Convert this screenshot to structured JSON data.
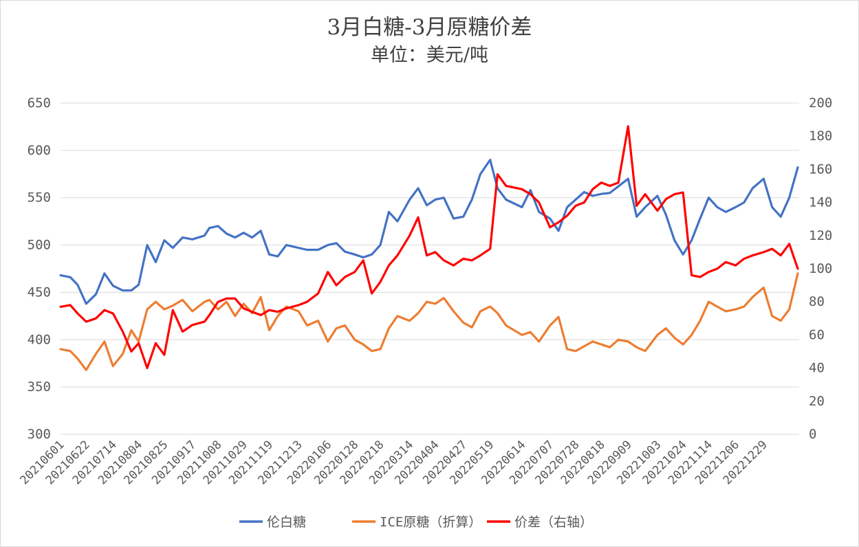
{
  "chart_data": {
    "type": "line",
    "title": "3月白糖-3月原糖价差",
    "subtitle": "单位：美元/吨",
    "left_axis": {
      "range": [
        300,
        650
      ],
      "ticks": [
        "300",
        "350",
        "400",
        "450",
        "500",
        "550",
        "600",
        "650"
      ]
    },
    "right_axis": {
      "range": [
        0,
        200
      ],
      "ticks": [
        "0",
        "20",
        "40",
        "60",
        "80",
        "100",
        "120",
        "140",
        "160",
        "180",
        "200"
      ]
    },
    "grid": true,
    "legend_position": "bottom",
    "x_tick_labels": [
      "20210601",
      "20210622",
      "20210714",
      "20210804",
      "20210825",
      "20210917",
      "20211008",
      "20211029",
      "20211119",
      "20211213",
      "20220106",
      "20220128",
      "20220218",
      "20220314",
      "20220404",
      "20220427",
      "20220519",
      "20220614",
      "20220707",
      "20220728",
      "20220818",
      "20220909",
      "20221003",
      "20221024",
      "20221114",
      "20221206",
      "20221229"
    ],
    "series": [
      {
        "name": "伦白糖",
        "axis": "left",
        "color": "#4472c4",
        "x": [
          "20210601",
          "20210609",
          "20210615",
          "20210622",
          "20210630",
          "20210707",
          "20210714",
          "20210722",
          "20210729",
          "20210804",
          "20210811",
          "20210818",
          "20210825",
          "20210901",
          "20210909",
          "20210917",
          "20210927",
          "20211001",
          "20211008",
          "20211015",
          "20211022",
          "20211029",
          "20211105",
          "20211112",
          "20211119",
          "20211126",
          "20211203",
          "20211213",
          "20211220",
          "20211229",
          "20220106",
          "20220113",
          "20220120",
          "20220128",
          "20220204",
          "20220211",
          "20220218",
          "20220225",
          "20220304",
          "20220314",
          "20220321",
          "20220328",
          "20220404",
          "20220411",
          "20220419",
          "20220427",
          "20220504",
          "20220511",
          "20220519",
          "20220525",
          "20220601",
          "20220614",
          "20220621",
          "20220628",
          "20220707",
          "20220714",
          "20220721",
          "20220728",
          "20220804",
          "20220811",
          "20220818",
          "20220825",
          "20220901",
          "20220909",
          "20220916",
          "20220923",
          "20221003",
          "20221010",
          "20221017",
          "20221024",
          "20221031",
          "20221107",
          "20221114",
          "20221121",
          "20221128",
          "20221206",
          "20221213",
          "20221220",
          "20221229",
          "20230105",
          "20230112",
          "20230119",
          "20230126"
        ],
        "values": [
          468,
          466,
          458,
          438,
          448,
          470,
          457,
          452,
          452,
          458,
          500,
          482,
          505,
          497,
          508,
          506,
          510,
          518,
          520,
          512,
          508,
          513,
          508,
          515,
          490,
          488,
          500,
          497,
          495,
          495,
          500,
          502,
          493,
          490,
          487,
          490,
          500,
          535,
          525,
          548,
          560,
          542,
          548,
          550,
          528,
          530,
          548,
          575,
          590,
          560,
          548,
          540,
          558,
          535,
          528,
          515,
          540,
          548,
          556,
          552,
          554,
          555,
          562,
          570,
          530,
          540,
          552,
          532,
          505,
          490,
          505,
          528,
          550,
          540,
          535,
          540,
          545,
          560,
          570,
          540,
          530,
          550,
          582
        ]
      },
      {
        "name": "ICE原糖（折算）",
        "axis": "left",
        "color": "#ed7d31",
        "x": [
          "20210601",
          "20210609",
          "20210615",
          "20210622",
          "20210630",
          "20210707",
          "20210714",
          "20210722",
          "20210729",
          "20210804",
          "20210811",
          "20210818",
          "20210825",
          "20210901",
          "20210909",
          "20210917",
          "20210927",
          "20211001",
          "20211008",
          "20211015",
          "20211022",
          "20211029",
          "20211105",
          "20211112",
          "20211119",
          "20211126",
          "20211203",
          "20211213",
          "20211220",
          "20211229",
          "20220106",
          "20220113",
          "20220120",
          "20220128",
          "20220204",
          "20220211",
          "20220218",
          "20220225",
          "20220304",
          "20220314",
          "20220321",
          "20220328",
          "20220404",
          "20220411",
          "20220419",
          "20220427",
          "20220504",
          "20220511",
          "20220519",
          "20220525",
          "20220601",
          "20220614",
          "20220621",
          "20220628",
          "20220707",
          "20220714",
          "20220721",
          "20220728",
          "20220804",
          "20220811",
          "20220818",
          "20220825",
          "20220901",
          "20220909",
          "20220916",
          "20220923",
          "20221003",
          "20221010",
          "20221017",
          "20221024",
          "20221031",
          "20221107",
          "20221114",
          "20221121",
          "20221128",
          "20221206",
          "20221213",
          "20221220",
          "20221229",
          "20230105",
          "20230112",
          "20230119",
          "20230126"
        ],
        "values": [
          390,
          388,
          380,
          368,
          385,
          398,
          372,
          385,
          410,
          398,
          432,
          440,
          432,
          436,
          442,
          430,
          440,
          442,
          432,
          440,
          425,
          438,
          428,
          445,
          410,
          425,
          435,
          430,
          415,
          420,
          398,
          412,
          415,
          400,
          395,
          388,
          390,
          412,
          425,
          420,
          428,
          440,
          438,
          444,
          430,
          418,
          413,
          430,
          435,
          428,
          415,
          405,
          408,
          398,
          415,
          424,
          390,
          388,
          393,
          398,
          395,
          392,
          400,
          398,
          392,
          388,
          405,
          412,
          402,
          395,
          405,
          420,
          440,
          435,
          430,
          432,
          435,
          445,
          455,
          425,
          420,
          432,
          470
        ]
      },
      {
        "name": "价差（右轴）",
        "axis": "right",
        "color": "#ff0000",
        "x": [
          "20210601",
          "20210609",
          "20210615",
          "20210622",
          "20210630",
          "20210707",
          "20210714",
          "20210722",
          "20210729",
          "20210804",
          "20210811",
          "20210818",
          "20210825",
          "20210901",
          "20210909",
          "20210917",
          "20210927",
          "20211001",
          "20211008",
          "20211015",
          "20211022",
          "20211029",
          "20211105",
          "20211112",
          "20211119",
          "20211126",
          "20211203",
          "20211213",
          "20211220",
          "20211229",
          "20220106",
          "20220113",
          "20220120",
          "20220128",
          "20220204",
          "20220211",
          "20220218",
          "20220225",
          "20220304",
          "20220314",
          "20220321",
          "20220328",
          "20220404",
          "20220411",
          "20220419",
          "20220427",
          "20220504",
          "20220511",
          "20220519",
          "20220525",
          "20220601",
          "20220614",
          "20220621",
          "20220628",
          "20220707",
          "20220714",
          "20220721",
          "20220728",
          "20220804",
          "20220811",
          "20220818",
          "20220825",
          "20220901",
          "20220909",
          "20220916",
          "20220923",
          "20221003",
          "20221010",
          "20221017",
          "20221024",
          "20221031",
          "20221107",
          "20221114",
          "20221121",
          "20221128",
          "20221206",
          "20221213",
          "20221220",
          "20221229",
          "20230105",
          "20230112",
          "20230119",
          "20230126"
        ],
        "values": [
          77,
          78,
          73,
          68,
          70,
          75,
          73,
          62,
          50,
          55,
          40,
          55,
          48,
          75,
          62,
          66,
          68,
          72,
          80,
          82,
          82,
          76,
          74,
          72,
          75,
          74,
          76,
          78,
          80,
          85,
          98,
          90,
          95,
          98,
          105,
          85,
          92,
          102,
          108,
          120,
          131,
          108,
          110,
          105,
          102,
          106,
          105,
          108,
          112,
          157,
          150,
          148,
          145,
          140,
          125,
          128,
          132,
          138,
          140,
          148,
          152,
          150,
          152,
          186,
          138,
          145,
          135,
          142,
          145,
          146,
          96,
          95,
          98,
          100,
          104,
          102,
          106,
          108,
          110,
          112,
          108,
          115,
          100
        ]
      }
    ]
  }
}
